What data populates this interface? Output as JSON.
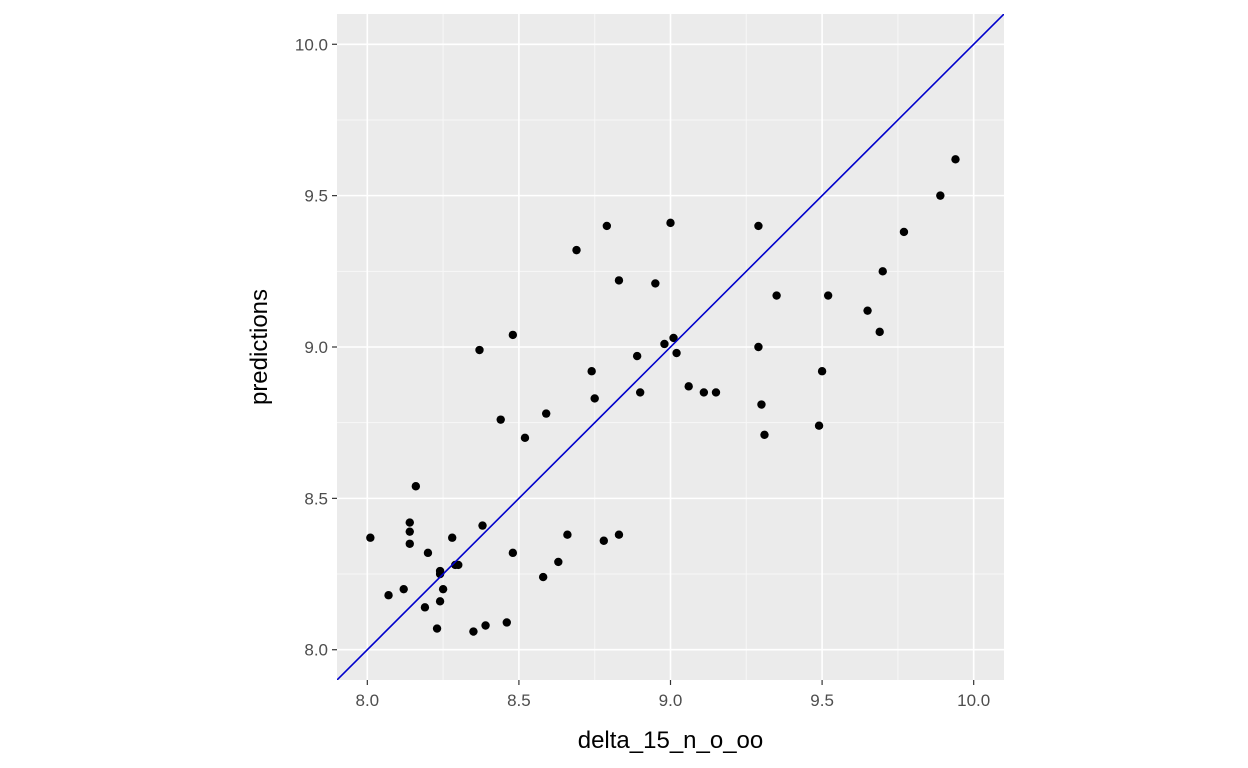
{
  "chart_data": {
    "type": "scatter",
    "title": "",
    "xlabel": "delta_15_n_o_oo",
    "ylabel": "predictions",
    "xlim": [
      7.9,
      10.1
    ],
    "ylim": [
      7.9,
      10.1
    ],
    "x_ticks": [
      8.0,
      8.5,
      9.0,
      9.5,
      10.0
    ],
    "y_ticks": [
      8.0,
      8.5,
      9.0,
      9.5,
      10.0
    ],
    "x_tick_labels": [
      "8.0",
      "8.5",
      "9.0",
      "9.5",
      "10.0"
    ],
    "y_tick_labels": [
      "8.0",
      "8.5",
      "9.0",
      "9.5",
      "10.0"
    ],
    "grid": true,
    "legend": "none",
    "reference_line": {
      "slope": 1,
      "intercept": 0
    },
    "colors": {
      "panel_background": "#ebebeb",
      "grid_major": "#ffffff",
      "point": "#000000",
      "reference_line": "#0000cc"
    },
    "points": [
      {
        "x": 8.01,
        "y": 8.37
      },
      {
        "x": 8.07,
        "y": 8.18
      },
      {
        "x": 8.12,
        "y": 8.2
      },
      {
        "x": 8.14,
        "y": 8.42
      },
      {
        "x": 8.14,
        "y": 8.39
      },
      {
        "x": 8.14,
        "y": 8.35
      },
      {
        "x": 8.16,
        "y": 8.54
      },
      {
        "x": 8.19,
        "y": 8.14
      },
      {
        "x": 8.2,
        "y": 8.32
      },
      {
        "x": 8.23,
        "y": 8.07
      },
      {
        "x": 8.24,
        "y": 8.16
      },
      {
        "x": 8.24,
        "y": 8.26
      },
      {
        "x": 8.24,
        "y": 8.25
      },
      {
        "x": 8.25,
        "y": 8.2
      },
      {
        "x": 8.28,
        "y": 8.37
      },
      {
        "x": 8.29,
        "y": 8.28
      },
      {
        "x": 8.3,
        "y": 8.28
      },
      {
        "x": 8.35,
        "y": 8.06
      },
      {
        "x": 8.37,
        "y": 8.99
      },
      {
        "x": 8.38,
        "y": 8.41
      },
      {
        "x": 8.39,
        "y": 8.08
      },
      {
        "x": 8.44,
        "y": 8.76
      },
      {
        "x": 8.46,
        "y": 8.09
      },
      {
        "x": 8.48,
        "y": 9.04
      },
      {
        "x": 8.48,
        "y": 8.32
      },
      {
        "x": 8.52,
        "y": 8.7
      },
      {
        "x": 8.58,
        "y": 8.24
      },
      {
        "x": 8.59,
        "y": 8.78
      },
      {
        "x": 8.63,
        "y": 8.29
      },
      {
        "x": 8.66,
        "y": 8.38
      },
      {
        "x": 8.69,
        "y": 9.32
      },
      {
        "x": 8.74,
        "y": 8.92
      },
      {
        "x": 8.75,
        "y": 8.83
      },
      {
        "x": 8.78,
        "y": 8.36
      },
      {
        "x": 8.79,
        "y": 9.4
      },
      {
        "x": 8.83,
        "y": 9.22
      },
      {
        "x": 8.83,
        "y": 8.38
      },
      {
        "x": 8.89,
        "y": 8.97
      },
      {
        "x": 8.9,
        "y": 8.85
      },
      {
        "x": 8.95,
        "y": 9.21
      },
      {
        "x": 8.98,
        "y": 9.01
      },
      {
        "x": 9.0,
        "y": 9.41
      },
      {
        "x": 9.01,
        "y": 9.03
      },
      {
        "x": 9.02,
        "y": 8.98
      },
      {
        "x": 9.06,
        "y": 8.87
      },
      {
        "x": 9.11,
        "y": 8.85
      },
      {
        "x": 9.15,
        "y": 8.85
      },
      {
        "x": 9.29,
        "y": 9.4
      },
      {
        "x": 9.29,
        "y": 9.0
      },
      {
        "x": 9.3,
        "y": 8.81
      },
      {
        "x": 9.31,
        "y": 8.71
      },
      {
        "x": 9.35,
        "y": 9.17
      },
      {
        "x": 9.49,
        "y": 8.74
      },
      {
        "x": 9.5,
        "y": 8.92
      },
      {
        "x": 9.52,
        "y": 9.17
      },
      {
        "x": 9.65,
        "y": 9.12
      },
      {
        "x": 9.69,
        "y": 9.05
      },
      {
        "x": 9.7,
        "y": 9.25
      },
      {
        "x": 9.77,
        "y": 9.38
      },
      {
        "x": 9.89,
        "y": 9.5
      },
      {
        "x": 9.94,
        "y": 9.62
      }
    ]
  }
}
